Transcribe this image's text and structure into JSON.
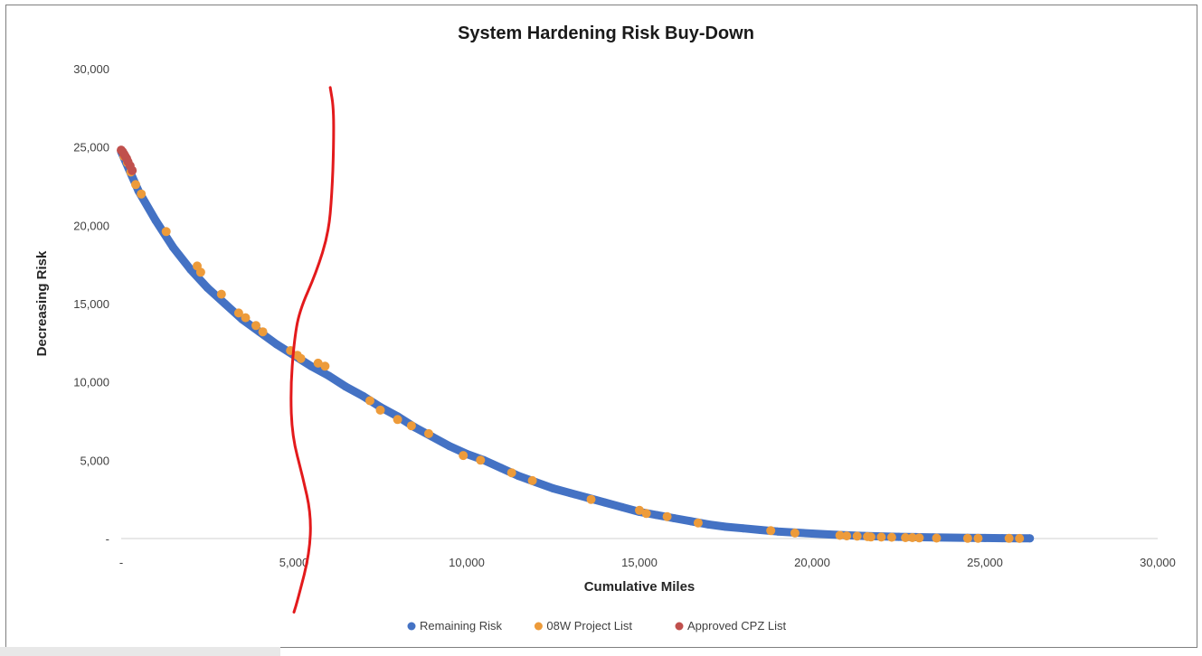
{
  "chart_data": {
    "type": "scatter",
    "title": "System Hardening Risk Buy-Down",
    "xlabel": "Cumulative Miles",
    "ylabel": "Decreasing Risk",
    "xlim": [
      0,
      30000
    ],
    "ylim": [
      0,
      30000
    ],
    "x_ticks": [
      0,
      5000,
      10000,
      15000,
      20000,
      25000,
      30000
    ],
    "x_tick_labels": [
      "-",
      "5,000",
      "10,000",
      "15,000",
      "20,000",
      "25,000",
      "30,000"
    ],
    "y_ticks": [
      0,
      5000,
      10000,
      15000,
      20000,
      25000,
      30000
    ],
    "y_tick_labels": [
      "-",
      "5,000",
      "10,000",
      "15,000",
      "20,000",
      "25,000",
      "30,000"
    ],
    "grid": false,
    "legend_position": "bottom",
    "series": [
      {
        "name": "Remaining Risk",
        "color": "#4472c4",
        "marker": "dot",
        "points": [
          [
            0,
            24700
          ],
          [
            500,
            22200
          ],
          [
            1000,
            20300
          ],
          [
            1500,
            18600
          ],
          [
            2000,
            17200
          ],
          [
            2500,
            16000
          ],
          [
            3000,
            15000
          ],
          [
            3500,
            14000
          ],
          [
            4000,
            13200
          ],
          [
            4500,
            12400
          ],
          [
            5000,
            11700
          ],
          [
            5500,
            11000
          ],
          [
            6000,
            10400
          ],
          [
            6500,
            9700
          ],
          [
            7000,
            9100
          ],
          [
            7500,
            8400
          ],
          [
            8000,
            7800
          ],
          [
            8500,
            7100
          ],
          [
            9000,
            6500
          ],
          [
            9500,
            5900
          ],
          [
            10000,
            5400
          ],
          [
            10500,
            5000
          ],
          [
            11000,
            4500
          ],
          [
            11500,
            4000
          ],
          [
            12000,
            3600
          ],
          [
            12500,
            3200
          ],
          [
            13000,
            2900
          ],
          [
            13500,
            2600
          ],
          [
            14000,
            2300
          ],
          [
            14500,
            2000
          ],
          [
            15000,
            1700
          ],
          [
            15500,
            1500
          ],
          [
            16000,
            1300
          ],
          [
            16500,
            1100
          ],
          [
            17000,
            900
          ],
          [
            17500,
            750
          ],
          [
            18000,
            650
          ],
          [
            18500,
            550
          ],
          [
            19000,
            450
          ],
          [
            19500,
            380
          ],
          [
            20000,
            320
          ],
          [
            20500,
            260
          ],
          [
            21000,
            210
          ],
          [
            21500,
            170
          ],
          [
            22000,
            140
          ],
          [
            22500,
            110
          ],
          [
            23000,
            90
          ],
          [
            23500,
            70
          ],
          [
            24000,
            55
          ],
          [
            24500,
            45
          ],
          [
            25000,
            35
          ],
          [
            25500,
            25
          ],
          [
            26000,
            15
          ],
          [
            26300,
            10
          ]
        ]
      },
      {
        "name": "08W Project List",
        "color": "#ed9b3a",
        "marker": "dot",
        "points": [
          [
            80,
            24400
          ],
          [
            180,
            24000
          ],
          [
            280,
            23400
          ],
          [
            420,
            22600
          ],
          [
            580,
            22000
          ],
          [
            1300,
            19600
          ],
          [
            2200,
            17400
          ],
          [
            2300,
            17000
          ],
          [
            2900,
            15600
          ],
          [
            3400,
            14400
          ],
          [
            3600,
            14100
          ],
          [
            3900,
            13600
          ],
          [
            4100,
            13200
          ],
          [
            4900,
            12000
          ],
          [
            5100,
            11700
          ],
          [
            5200,
            11500
          ],
          [
            5700,
            11200
          ],
          [
            5900,
            11000
          ],
          [
            7200,
            8800
          ],
          [
            7500,
            8200
          ],
          [
            8000,
            7600
          ],
          [
            8400,
            7200
          ],
          [
            8900,
            6700
          ],
          [
            9900,
            5300
          ],
          [
            10400,
            5000
          ],
          [
            11300,
            4200
          ],
          [
            11900,
            3700
          ],
          [
            13600,
            2500
          ],
          [
            15000,
            1800
          ],
          [
            15200,
            1600
          ],
          [
            15800,
            1400
          ],
          [
            16700,
            1000
          ],
          [
            18800,
            500
          ],
          [
            19500,
            350
          ],
          [
            20800,
            200
          ],
          [
            21000,
            170
          ],
          [
            21300,
            150
          ],
          [
            21600,
            120
          ],
          [
            21700,
            100
          ],
          [
            22000,
            90
          ],
          [
            22300,
            80
          ],
          [
            22700,
            60
          ],
          [
            22900,
            55
          ],
          [
            23100,
            40
          ],
          [
            23600,
            30
          ],
          [
            24500,
            20
          ],
          [
            24800,
            15
          ],
          [
            25700,
            10
          ],
          [
            26000,
            5
          ]
        ]
      },
      {
        "name": "Approved CPZ List",
        "color": "#c0504d",
        "marker": "dot",
        "points": [
          [
            0,
            24800
          ],
          [
            40,
            24700
          ],
          [
            80,
            24550
          ],
          [
            120,
            24400
          ],
          [
            160,
            24250
          ],
          [
            200,
            24050
          ],
          [
            260,
            23800
          ],
          [
            320,
            23500
          ]
        ]
      }
    ],
    "annotation_line": {
      "color": "#e31a1c",
      "description": "hand-drawn vertical line",
      "points": [
        [
          6050,
          28800
        ],
        [
          6150,
          27500
        ],
        [
          6150,
          25000
        ],
        [
          6100,
          22000
        ],
        [
          6000,
          19500
        ],
        [
          5650,
          17000
        ],
        [
          5150,
          14500
        ],
        [
          5000,
          12500
        ],
        [
          4900,
          9500
        ],
        [
          4950,
          6500
        ],
        [
          5250,
          4000
        ],
        [
          5500,
          1500
        ],
        [
          5450,
          -1000
        ],
        [
          5100,
          -4000
        ],
        [
          5000,
          -4700
        ]
      ]
    }
  }
}
